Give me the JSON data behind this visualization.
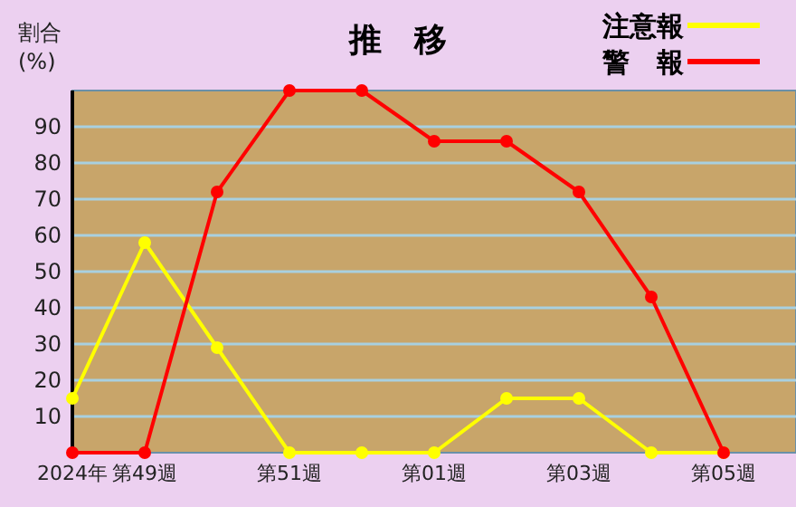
{
  "chart_data": {
    "type": "line",
    "title": "推　移",
    "ylabel": "割合\n(%)",
    "categories": [
      "2024年",
      "第49週",
      null,
      "第51週",
      null,
      "第01週",
      null,
      "第03週",
      null,
      "第05週"
    ],
    "series": [
      {
        "name": "注意報",
        "color": "#ffff00",
        "values": [
          15,
          58,
          29,
          0,
          0,
          0,
          15,
          15,
          0,
          0
        ]
      },
      {
        "name": "警　報",
        "color": "#ff0000",
        "values": [
          0,
          0,
          72,
          100,
          100,
          86,
          86,
          72,
          43,
          0
        ]
      }
    ],
    "ylim": [
      0,
      100
    ],
    "yticks": [
      10,
      20,
      30,
      40,
      50,
      60,
      70,
      80,
      90
    ],
    "grid": "y",
    "legend": "top right",
    "marker": "circle"
  }
}
